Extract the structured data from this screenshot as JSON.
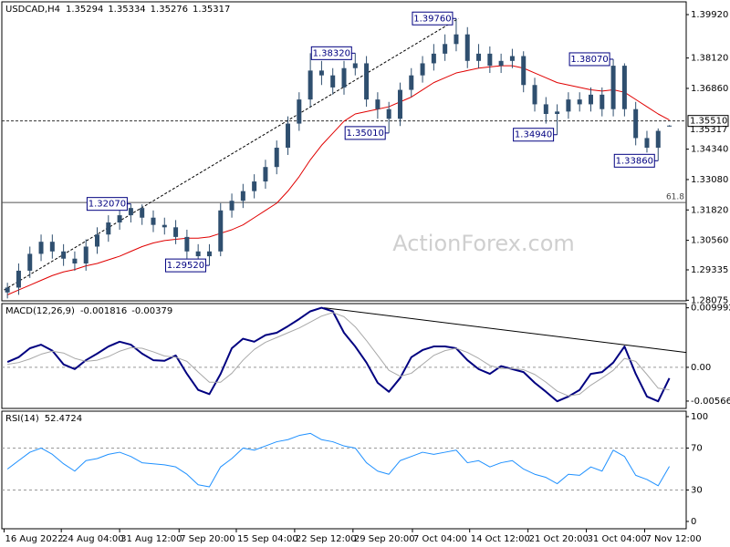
{
  "watermark": "ActionForex.com",
  "chart_data": [
    {
      "type": "candlestick",
      "title": "USDCAD,H4",
      "color": "#2f4f6f",
      "xlim": [
        -0.5,
        60.5
      ],
      "ylim": [
        1.2805,
        1.4045
      ],
      "yticks": [
        {
          "value": 1.3992,
          "label": "1.39920"
        },
        {
          "value": 1.3812,
          "label": "1.38120"
        },
        {
          "value": 1.3686,
          "label": "1.36860"
        },
        {
          "value": 1.3434,
          "label": "1.34340"
        },
        {
          "value": 1.3308,
          "label": "1.33080"
        },
        {
          "value": 1.3182,
          "label": "1.31820"
        },
        {
          "value": 1.3056,
          "label": "1.30560"
        },
        1.29335,
        1.28075
      ],
      "open": [
        1.284,
        1.286,
        1.293,
        1.3,
        1.305,
        1.301,
        1.298,
        1.296,
        1.303,
        1.308,
        1.313,
        1.316,
        1.319,
        1.315,
        1.312,
        1.311,
        1.307,
        1.301,
        1.299,
        1.301,
        1.318,
        1.322,
        1.326,
        1.33,
        1.336,
        1.344,
        1.354,
        1.364,
        1.376,
        1.374,
        1.369,
        1.377,
        1.379,
        1.364,
        1.36,
        1.356,
        1.368,
        1.374,
        1.379,
        1.383,
        1.387,
        1.391,
        1.38,
        1.383,
        1.378,
        1.38,
        1.382,
        1.37,
        1.362,
        1.358,
        1.359,
        1.364,
        1.362,
        1.366,
        1.36,
        1.378,
        1.36,
        1.348,
        1.344,
        1.35294
      ],
      "high": [
        1.288,
        1.296,
        1.303,
        1.308,
        1.308,
        1.304,
        1.301,
        1.306,
        1.311,
        1.316,
        1.319,
        1.3207,
        1.3205,
        1.318,
        1.315,
        1.314,
        1.31,
        1.304,
        1.304,
        1.321,
        1.325,
        1.329,
        1.333,
        1.339,
        1.347,
        1.357,
        1.367,
        1.3832,
        1.38,
        1.377,
        1.38,
        1.3832,
        1.382,
        1.367,
        1.363,
        1.371,
        1.377,
        1.382,
        1.387,
        1.391,
        1.3976,
        1.394,
        1.387,
        1.386,
        1.383,
        1.385,
        1.384,
        1.373,
        1.365,
        1.362,
        1.367,
        1.367,
        1.369,
        1.369,
        1.3807,
        1.379,
        1.363,
        1.351,
        1.352,
        1.35334
      ],
      "low": [
        1.2815,
        1.283,
        1.29,
        1.297,
        1.298,
        1.295,
        1.293,
        1.293,
        1.3,
        1.305,
        1.31,
        1.313,
        1.312,
        1.309,
        1.308,
        1.304,
        1.298,
        1.296,
        1.2952,
        1.299,
        1.315,
        1.319,
        1.323,
        1.327,
        1.333,
        1.341,
        1.351,
        1.361,
        1.37,
        1.366,
        1.366,
        1.374,
        1.361,
        1.356,
        1.3501,
        1.353,
        1.365,
        1.371,
        1.376,
        1.38,
        1.384,
        1.377,
        1.377,
        1.375,
        1.375,
        1.377,
        1.367,
        1.359,
        1.354,
        1.3494,
        1.356,
        1.359,
        1.359,
        1.357,
        1.357,
        1.357,
        1.345,
        1.342,
        1.3386,
        1.35276
      ],
      "close": [
        1.286,
        1.293,
        1.3,
        1.305,
        1.301,
        1.298,
        1.296,
        1.303,
        1.308,
        1.313,
        1.316,
        1.319,
        1.315,
        1.312,
        1.311,
        1.307,
        1.301,
        1.299,
        1.301,
        1.318,
        1.322,
        1.326,
        1.33,
        1.336,
        1.344,
        1.354,
        1.364,
        1.376,
        1.374,
        1.369,
        1.377,
        1.379,
        1.364,
        1.36,
        1.356,
        1.368,
        1.374,
        1.379,
        1.383,
        1.387,
        1.391,
        1.38,
        1.383,
        1.378,
        1.38,
        1.382,
        1.37,
        1.362,
        1.358,
        1.359,
        1.364,
        1.362,
        1.366,
        1.36,
        1.378,
        1.36,
        1.348,
        1.344,
        1.351,
        1.35317
      ],
      "moving_average": {
        "color": "#e00000",
        "values": [
          1.283,
          1.285,
          1.287,
          1.289,
          1.291,
          1.2925,
          1.2935,
          1.295,
          1.296,
          1.2975,
          1.299,
          1.301,
          1.303,
          1.3045,
          1.3055,
          1.306,
          1.3065,
          1.3065,
          1.307,
          1.3085,
          1.31,
          1.312,
          1.315,
          1.318,
          1.321,
          1.326,
          1.332,
          1.339,
          1.345,
          1.35,
          1.355,
          1.358,
          1.359,
          1.36,
          1.361,
          1.363,
          1.365,
          1.368,
          1.371,
          1.373,
          1.375,
          1.376,
          1.377,
          1.3775,
          1.378,
          1.378,
          1.377,
          1.375,
          1.373,
          1.371,
          1.37,
          1.369,
          1.368,
          1.3675,
          1.368,
          1.367,
          1.364,
          1.361,
          1.358,
          1.3555
        ]
      },
      "price_lines": [
        {
          "value": 1.3551,
          "label": "1.35510",
          "style": "dashed",
          "label_position": "axis"
        },
        {
          "value": 1.3213,
          "label": "61.8",
          "style": "solid",
          "label_position": "inside"
        }
      ],
      "trendlines": [
        {
          "x": [
            -0.3,
            40.2
          ],
          "y": [
            1.285,
            1.3976
          ],
          "style": "dashed"
        }
      ],
      "annotations": [
        {
          "index": 11,
          "value": 1.3207,
          "label": "1.32070"
        },
        {
          "index": 18,
          "value": 1.2952,
          "label": "1.29520"
        },
        {
          "index": 31,
          "value": 1.3832,
          "label": "1.38320"
        },
        {
          "index": 34,
          "value": 1.3501,
          "label": "1.35010"
        },
        {
          "index": 40,
          "value": 1.3976,
          "label": "1.39760"
        },
        {
          "index": 49,
          "value": 1.3494,
          "label": "1.34940"
        },
        {
          "index": 54,
          "value": 1.3807,
          "label": "1.38070"
        },
        {
          "index": 58,
          "value": 1.3386,
          "label": "1.33860"
        }
      ]
    },
    {
      "type": "line",
      "title": "MACD(12,26,9)",
      "xlim": [
        -0.5,
        60.5
      ],
      "ylim": [
        -0.0069,
        0.0107
      ],
      "yticks": [
        0.009992,
        {
          "value": 0,
          "label": "0.00"
        },
        -0.005668
      ],
      "levels": [
        0
      ],
      "series": [
        {
          "color": "#000080",
          "width": 2,
          "values": [
            0.0009,
            0.0017,
            0.0032,
            0.0038,
            0.0028,
            0.0005,
            -0.0003,
            0.0012,
            0.0023,
            0.0035,
            0.0043,
            0.0038,
            0.0023,
            0.0012,
            0.0011,
            0.002,
            -0.0011,
            -0.0038,
            -0.0045,
            -0.0011,
            0.0032,
            0.0048,
            0.0043,
            0.0054,
            0.0058,
            0.0069,
            0.0081,
            0.0094,
            0.01,
            0.0094,
            0.0058,
            0.0035,
            0.0008,
            -0.0026,
            -0.0041,
            -0.0018,
            0.0017,
            0.0029,
            0.0035,
            0.0035,
            0.0032,
            0.0012,
            -0.0003,
            -0.0011,
            0.0002,
            -0.0003,
            -0.0008,
            -0.0026,
            -0.0041,
            -0.0057,
            -0.0049,
            -0.0038,
            -0.0011,
            -0.0008,
            0.0008,
            0.0035,
            -0.0011,
            -0.0049,
            -0.0057,
            -0.001816
          ]
        },
        {
          "color": "#a8a8a8",
          "width": 1,
          "values": [
            0.0005,
            0.0008,
            0.0014,
            0.0022,
            0.0027,
            0.0024,
            0.0015,
            0.001,
            0.0012,
            0.0018,
            0.0027,
            0.0033,
            0.0032,
            0.0026,
            0.0019,
            0.0017,
            0.001,
            -0.0008,
            -0.0025,
            -0.0025,
            -0.001,
            0.0012,
            0.003,
            0.0042,
            0.005,
            0.0058,
            0.0066,
            0.0076,
            0.0086,
            0.0092,
            0.0085,
            0.0068,
            0.0045,
            0.002,
            -0.0005,
            -0.0015,
            -0.001,
            0.0005,
            0.002,
            0.0028,
            0.0032,
            0.0025,
            0.0015,
            0.0003,
            -0.0002,
            -0.0002,
            -0.0004,
            -0.0012,
            -0.0025,
            -0.004,
            -0.0048,
            -0.0045,
            -0.003,
            -0.0018,
            -0.0005,
            0.0015,
            0.001,
            -0.0012,
            -0.0035,
            -0.00379
          ]
        }
      ],
      "trendlines": [
        {
          "x": [
            28.2,
            60.5
          ],
          "y": [
            0.01,
            0.0025
          ],
          "style": "solid"
        }
      ]
    },
    {
      "type": "line",
      "title": "RSI(14)",
      "xlim": [
        -0.5,
        60.5
      ],
      "ylim": [
        -7,
        105.2
      ],
      "yticks": [
        100,
        70,
        30,
        0
      ],
      "levels": [
        70,
        30
      ],
      "series": [
        {
          "color": "#1e90ff",
          "width": 1,
          "values": [
            50,
            58,
            66,
            70,
            64,
            55,
            48,
            58,
            60,
            64,
            66,
            62,
            56,
            55,
            54,
            52,
            45,
            35,
            33,
            52,
            60,
            70,
            68,
            72,
            76,
            78,
            82,
            84,
            78,
            76,
            72,
            70,
            56,
            48,
            45,
            58,
            62,
            66,
            64,
            66,
            68,
            56,
            58,
            52,
            56,
            58,
            50,
            45,
            42,
            36,
            45,
            44,
            52,
            48,
            68,
            62,
            44,
            40,
            34,
            52.4724
          ]
        }
      ],
      "xticks": [
        {
          "value": -0.3,
          "label": "16 Aug 2022"
        },
        {
          "value": 4.8,
          "label": "24 Aug 04:00"
        },
        {
          "value": 10.0,
          "label": "31 Aug 12:00"
        },
        {
          "value": 15.3,
          "label": "7 Sep 20:00"
        },
        {
          "value": 20.4,
          "label": "15 Sep 04:00"
        },
        {
          "value": 25.6,
          "label": "22 Sep 12:00"
        },
        {
          "value": 30.8,
          "label": "29 Sep 20:00"
        },
        {
          "value": 36.1,
          "label": "7 Oct 04:00"
        },
        {
          "value": 41.2,
          "label": "14 Oct 12:00"
        },
        {
          "value": 46.4,
          "label": "21 Oct 20:00"
        },
        {
          "value": 51.6,
          "label": "31 Oct 04:00"
        },
        {
          "value": 56.8,
          "label": "7 Nov 12:00"
        }
      ]
    }
  ]
}
